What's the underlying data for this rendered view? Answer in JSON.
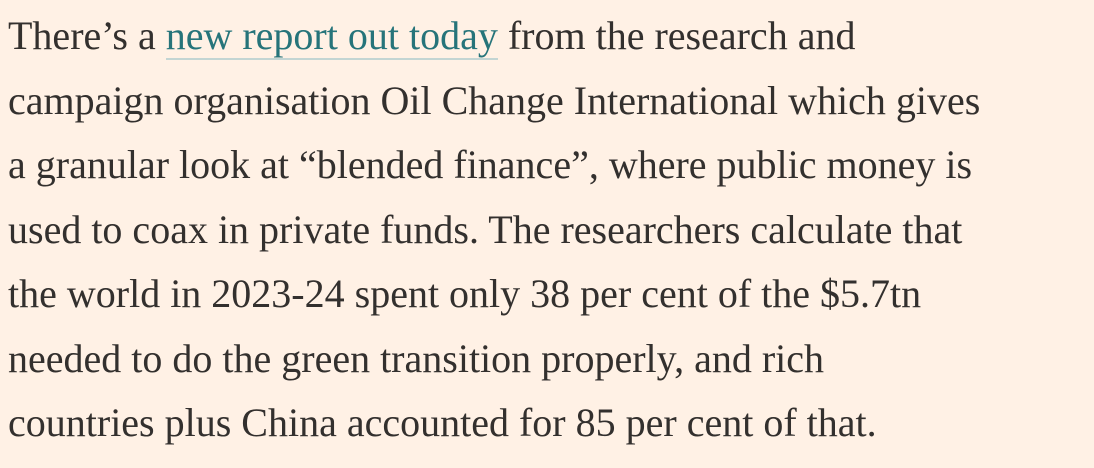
{
  "article": {
    "lines": [
      {
        "before": "There’s a ",
        "link": "new report out today",
        "after": " from the research and"
      },
      "campaign organisation Oil Change International which gives",
      "a granular look at “blended finance”, where public money is",
      "used to coax in private funds. The researchers calculate that",
      "the world in 2023-24 spent only 38 per cent of the $5.7tn",
      "needed to do the green transition properly, and rich",
      "countries plus China accounted for 85 per cent of that."
    ]
  },
  "colors": {
    "background": "#fff1e5",
    "text": "#33302e",
    "link": "#26747a",
    "link_underline": "#c3d5d3"
  }
}
